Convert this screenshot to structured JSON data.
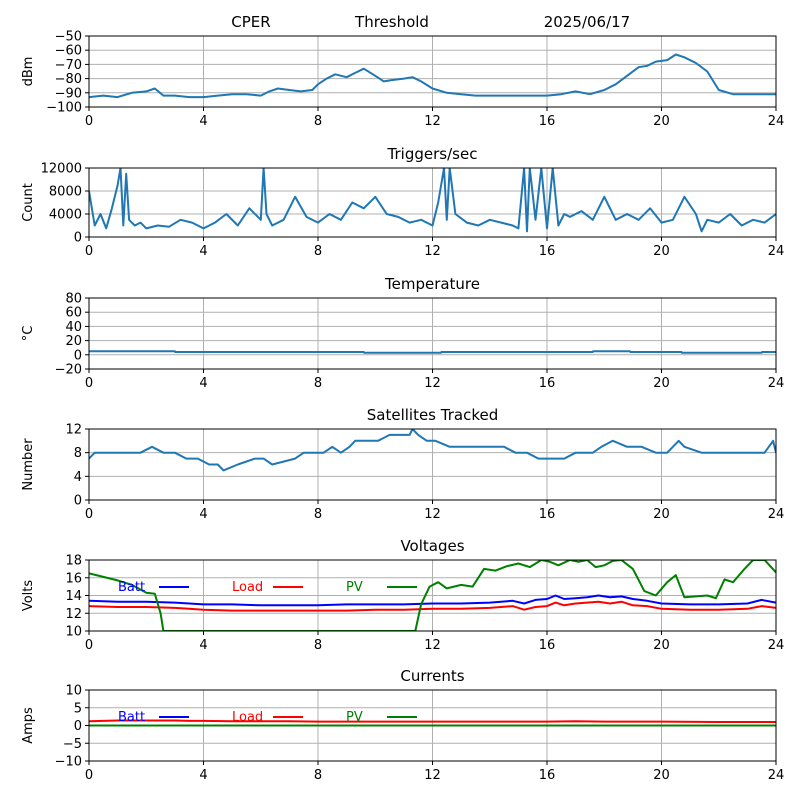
{
  "header": {
    "station": "CPER",
    "mode": "Threshold",
    "date": "2025/06/17"
  },
  "chart_data": [
    {
      "id": "signal",
      "type": "line",
      "title": "",
      "xlabel": "",
      "ylabel": "dBm",
      "xlim": [
        0,
        24
      ],
      "ylim": [
        -100,
        -50
      ],
      "xticks": [
        0,
        4,
        8,
        12,
        16,
        20,
        24
      ],
      "yticks": [
        -100,
        -90,
        -80,
        -70,
        -60,
        -50
      ],
      "grid": true,
      "series": [
        {
          "color": "#1f77b4",
          "x": [
            0,
            0.5,
            1,
            1.5,
            2,
            2.3,
            2.6,
            3,
            3.5,
            4,
            4.5,
            5,
            5.5,
            6,
            6.3,
            6.6,
            7,
            7.4,
            7.8,
            8,
            8.3,
            8.6,
            9,
            9.3,
            9.6,
            10,
            10.3,
            10.6,
            11,
            11.3,
            11.6,
            12,
            12.5,
            13,
            13.5,
            14,
            14.5,
            15,
            15.5,
            16,
            16.5,
            17,
            17.5,
            18,
            18.4,
            18.8,
            19.2,
            19.5,
            19.8,
            20.2,
            20.5,
            20.8,
            21.2,
            21.6,
            22,
            22.5,
            23,
            23.5,
            24
          ],
          "y": [
            -93,
            -92,
            -93,
            -90,
            -89,
            -87,
            -92,
            -92,
            -93,
            -93,
            -92,
            -91,
            -91,
            -92,
            -89,
            -87,
            -88,
            -89,
            -88,
            -84,
            -80,
            -77,
            -79,
            -76,
            -73,
            -78,
            -82,
            -81,
            -80,
            -79,
            -82,
            -87,
            -90,
            -91,
            -92,
            -92,
            -92,
            -92,
            -92,
            -92,
            -91,
            -89,
            -91,
            -88,
            -84,
            -78,
            -72,
            -71,
            -68,
            -67,
            -63,
            -65,
            -69,
            -75,
            -88,
            -91,
            -91,
            -91,
            -91
          ]
        }
      ]
    },
    {
      "id": "triggers",
      "type": "line",
      "title": "Triggers/sec",
      "xlabel": "",
      "ylabel": "Count",
      "xlim": [
        0,
        24
      ],
      "ylim": [
        0,
        12000
      ],
      "xticks": [
        0,
        4,
        8,
        12,
        16,
        20,
        24
      ],
      "yticks": [
        0,
        4000,
        8000,
        12000
      ],
      "grid": true,
      "series": [
        {
          "color": "#1f77b4",
          "x": [
            0,
            0.2,
            0.4,
            0.6,
            0.8,
            1,
            1.1,
            1.2,
            1.3,
            1.4,
            1.6,
            1.8,
            2,
            2.4,
            2.8,
            3.2,
            3.6,
            4,
            4.4,
            4.8,
            5.2,
            5.6,
            6,
            6.1,
            6.2,
            6.4,
            6.8,
            7.2,
            7.6,
            8,
            8.4,
            8.8,
            9.2,
            9.6,
            10,
            10.4,
            10.8,
            11.2,
            11.6,
            12,
            12.2,
            12.4,
            12.5,
            12.6,
            12.8,
            13.2,
            13.6,
            14,
            14.4,
            14.8,
            15,
            15.2,
            15.3,
            15.4,
            15.6,
            15.8,
            16,
            16.2,
            16.4,
            16.6,
            16.8,
            17.2,
            17.6,
            18,
            18.4,
            18.8,
            19.2,
            19.6,
            20,
            20.4,
            20.8,
            21.2,
            21.4,
            21.6,
            22,
            22.4,
            22.8,
            23.2,
            23.6,
            24
          ],
          "y": [
            8000,
            2000,
            4000,
            1500,
            5000,
            9000,
            12000,
            2000,
            11000,
            3000,
            2000,
            2500,
            1500,
            2000,
            1800,
            3000,
            2500,
            1500,
            2500,
            4000,
            2000,
            5000,
            3000,
            12000,
            4000,
            2000,
            3000,
            7000,
            3500,
            2500,
            4000,
            3000,
            6000,
            5000,
            7000,
            4000,
            3500,
            2500,
            3000,
            2000,
            6000,
            12000,
            3000,
            12000,
            4000,
            2500,
            2000,
            3000,
            2500,
            2000,
            1500,
            12000,
            1000,
            12000,
            3000,
            12000,
            1500,
            12000,
            2000,
            4000,
            3500,
            4500,
            3000,
            7000,
            3000,
            4000,
            3000,
            5000,
            2500,
            3000,
            7000,
            4000,
            1000,
            3000,
            2500,
            4000,
            2000,
            3000,
            2500,
            4000
          ]
        }
      ]
    },
    {
      "id": "temperature",
      "type": "line",
      "title": "Temperature",
      "xlabel": "",
      "ylabel": "°C",
      "xlim": [
        0,
        24
      ],
      "ylim": [
        -20,
        80
      ],
      "xticks": [
        0,
        4,
        8,
        12,
        16,
        20,
        24
      ],
      "yticks": [
        -20,
        0,
        20,
        40,
        60,
        80
      ],
      "grid": true,
      "series": [
        {
          "color": "#1f77b4",
          "x": [
            0,
            3,
            3.01,
            9.6,
            9.61,
            12.3,
            12.31,
            17.6,
            17.61,
            18.9,
            18.91,
            20.7,
            20.71,
            23.5,
            23.51,
            24
          ],
          "y": [
            5,
            5,
            4,
            4,
            3,
            3,
            4,
            4,
            5,
            5,
            4,
            4,
            3,
            3,
            4,
            4
          ]
        }
      ]
    },
    {
      "id": "satellites",
      "type": "line",
      "title": "Satellites Tracked",
      "xlabel": "",
      "ylabel": "Number",
      "xlim": [
        0,
        24
      ],
      "ylim": [
        0,
        12
      ],
      "xticks": [
        0,
        4,
        8,
        12,
        16,
        20,
        24
      ],
      "yticks": [
        0,
        4,
        8,
        12
      ],
      "grid": true,
      "series": [
        {
          "color": "#1f77b4",
          "x": [
            0,
            0.2,
            0.4,
            0.9,
            1.8,
            2.2,
            2.6,
            3,
            3.4,
            3.8,
            4.2,
            4.5,
            4.7,
            5.2,
            5.8,
            6.1,
            6.4,
            7.2,
            7.5,
            7.8,
            8.2,
            8.5,
            8.8,
            9.1,
            9.3,
            9.6,
            10.1,
            10.5,
            11,
            11.2,
            11.3,
            11.5,
            11.8,
            12.1,
            12.6,
            13.2,
            13.8,
            14.5,
            14.9,
            15.3,
            15.7,
            16.2,
            16.6,
            17,
            17.6,
            17.9,
            18.3,
            18.8,
            19.3,
            19.8,
            20.2,
            20.6,
            20.8,
            21.4,
            22.1,
            22.6,
            23.1,
            23.6,
            23.9,
            24
          ],
          "y": [
            7,
            8,
            8,
            8,
            8,
            9,
            8,
            8,
            7,
            7,
            6,
            6,
            5,
            6,
            7,
            7,
            6,
            7,
            8,
            8,
            8,
            9,
            8,
            9,
            10,
            10,
            10,
            11,
            11,
            11,
            12,
            11,
            10,
            10,
            9,
            9,
            9,
            9,
            8,
            8,
            7,
            7,
            7,
            8,
            8,
            9,
            10,
            9,
            9,
            8,
            8,
            10,
            9,
            8,
            8,
            8,
            8,
            8,
            10,
            8
          ]
        }
      ]
    },
    {
      "id": "voltages",
      "type": "line",
      "title": "Voltages",
      "xlabel": "",
      "ylabel": "Volts",
      "xlim": [
        0,
        24
      ],
      "ylim": [
        10,
        18
      ],
      "xticks": [
        0,
        4,
        8,
        12,
        16,
        20,
        24
      ],
      "yticks": [
        10,
        12,
        14,
        16,
        18
      ],
      "grid": true,
      "legend_position": "upper-left inline",
      "series": [
        {
          "name": "Batt",
          "color": "#0000ff",
          "x": [
            0,
            1,
            2,
            3,
            3.5,
            4,
            5,
            6,
            7,
            8,
            9,
            10,
            11,
            12,
            13,
            14,
            14.8,
            15.2,
            15.6,
            16,
            16.3,
            16.6,
            17,
            17.4,
            17.8,
            18.2,
            18.6,
            19,
            19.5,
            20,
            21,
            22,
            23,
            23.5,
            24
          ],
          "y": [
            13.4,
            13.3,
            13.3,
            13.2,
            13.1,
            13.0,
            13.0,
            12.9,
            12.9,
            12.9,
            13.0,
            13.0,
            13.0,
            13.1,
            13.1,
            13.2,
            13.4,
            13.1,
            13.5,
            13.6,
            14.0,
            13.6,
            13.7,
            13.8,
            14.0,
            13.8,
            13.9,
            13.6,
            13.4,
            13.1,
            13.0,
            13.0,
            13.1,
            13.5,
            13.2
          ]
        },
        {
          "name": "Load",
          "color": "#ff0000",
          "x": [
            0,
            1,
            2,
            3,
            3.5,
            4,
            5,
            6,
            7,
            8,
            9,
            10,
            11,
            12,
            13,
            14,
            14.8,
            15.2,
            15.6,
            16,
            16.3,
            16.6,
            17,
            17.4,
            17.8,
            18.2,
            18.6,
            19,
            19.5,
            20,
            21,
            22,
            23,
            23.5,
            24
          ],
          "y": [
            12.8,
            12.7,
            12.7,
            12.6,
            12.5,
            12.4,
            12.3,
            12.3,
            12.3,
            12.3,
            12.3,
            12.4,
            12.4,
            12.5,
            12.5,
            12.6,
            12.8,
            12.4,
            12.7,
            12.8,
            13.2,
            12.9,
            13.1,
            13.2,
            13.3,
            13.1,
            13.3,
            12.9,
            12.8,
            12.5,
            12.4,
            12.4,
            12.5,
            12.8,
            12.6
          ]
        },
        {
          "name": "PV",
          "color": "#008000",
          "x": [
            0,
            0.5,
            1,
            1.5,
            2,
            2.3,
            2.5,
            2.6,
            11.4,
            11.6,
            11.9,
            12.2,
            12.5,
            13,
            13.4,
            13.8,
            14.2,
            14.6,
            15,
            15.4,
            15.8,
            16.1,
            16.4,
            16.8,
            17.1,
            17.4,
            17.7,
            18,
            18.3,
            18.6,
            19,
            19.4,
            19.8,
            20.2,
            20.5,
            20.8,
            21.2,
            21.6,
            21.9,
            22.2,
            22.5,
            22.9,
            23.2,
            23.6,
            24
          ],
          "y": [
            16.5,
            16.1,
            15.7,
            15.2,
            14.3,
            14.2,
            12.0,
            10.0,
            10.0,
            13.0,
            15.0,
            15.5,
            14.8,
            15.2,
            15.0,
            17.0,
            16.8,
            17.3,
            17.6,
            17.2,
            18.0,
            17.8,
            17.4,
            18.0,
            17.8,
            18.0,
            17.2,
            17.4,
            17.9,
            18.0,
            17.0,
            14.5,
            14.0,
            15.5,
            16.3,
            13.8,
            13.9,
            14.0,
            13.7,
            15.8,
            15.5,
            17.0,
            18.0,
            18.0,
            16.6
          ]
        }
      ]
    },
    {
      "id": "currents",
      "type": "line",
      "title": "Currents",
      "xlabel": "",
      "ylabel": "Amps",
      "xlim": [
        0,
        24
      ],
      "ylim": [
        -10,
        10
      ],
      "xticks": [
        0,
        4,
        8,
        12,
        16,
        20,
        24
      ],
      "yticks": [
        -10,
        -5,
        0,
        5,
        10
      ],
      "grid": true,
      "legend_position": "upper-left inline",
      "series": [
        {
          "name": "Batt",
          "color": "#0000ff",
          "x": [
            0,
            24
          ],
          "y": [
            0,
            0
          ]
        },
        {
          "name": "Load",
          "color": "#ff0000",
          "x": [
            0,
            0.5,
            1,
            2,
            3,
            3.5,
            4,
            5,
            6,
            7,
            8,
            10,
            12,
            14,
            16,
            17,
            18,
            20,
            22,
            24
          ],
          "y": [
            1.2,
            1.3,
            1.4,
            1.4,
            1.4,
            1.3,
            1.3,
            1.2,
            1.2,
            1.2,
            1.1,
            1.1,
            1.1,
            1.1,
            1.1,
            1.2,
            1.1,
            1.1,
            1.0,
            1.0
          ]
        },
        {
          "name": "PV",
          "color": "#008000",
          "x": [
            0,
            24
          ],
          "y": [
            0,
            0
          ]
        }
      ]
    }
  ]
}
